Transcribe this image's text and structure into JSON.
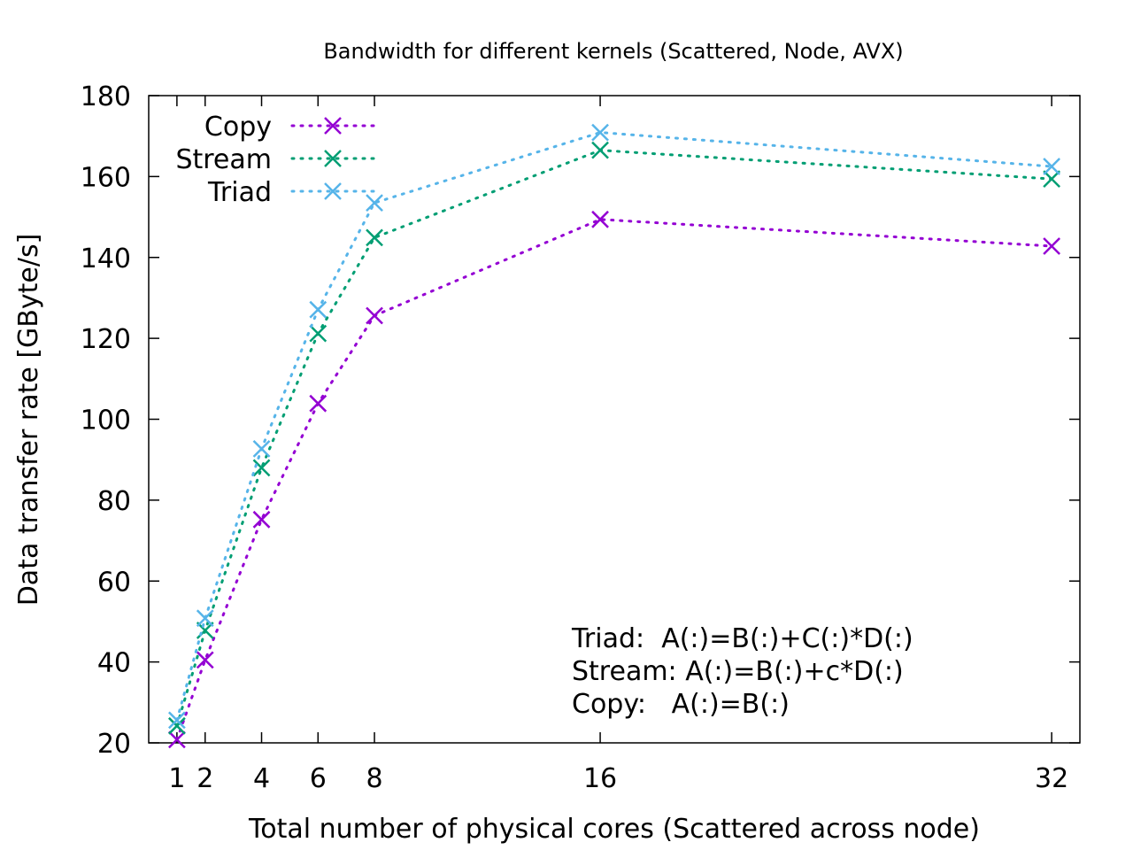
{
  "chart_data": {
    "type": "line",
    "title": "Bandwidth for different kernels (Scattered, Node, AVX)",
    "xlabel": "Total number of physical cores (Scattered across node)",
    "ylabel": "Data transfer rate [GByte/s]",
    "xlim": [
      0,
      33
    ],
    "ylim": [
      20,
      180
    ],
    "x_ticks": [
      1,
      2,
      4,
      6,
      8,
      16,
      32
    ],
    "y_ticks": [
      20,
      40,
      60,
      80,
      100,
      120,
      140,
      160,
      180
    ],
    "grid": false,
    "legend_position": "top-left",
    "x": [
      1,
      2,
      4,
      6,
      8,
      16,
      32
    ],
    "series": [
      {
        "name": "Copy",
        "color": "#9400d3",
        "values": [
          20.8,
          40.5,
          75.2,
          103.9,
          125.6,
          149.4,
          142.8
        ]
      },
      {
        "name": "Stream",
        "color": "#009e73",
        "values": [
          24.2,
          47.8,
          88.0,
          121.2,
          144.9,
          166.5,
          159.4
        ]
      },
      {
        "name": "Triad",
        "color": "#56b4e9",
        "values": [
          25.6,
          50.8,
          92.7,
          127.1,
          153.5,
          170.9,
          162.5
        ]
      }
    ],
    "annotations": [
      "Triad:  A(:)=B(:)+C(:)*D(:)",
      "Stream: A(:)=B(:)+c*D(:)",
      "Copy:   A(:)=B(:)"
    ]
  }
}
